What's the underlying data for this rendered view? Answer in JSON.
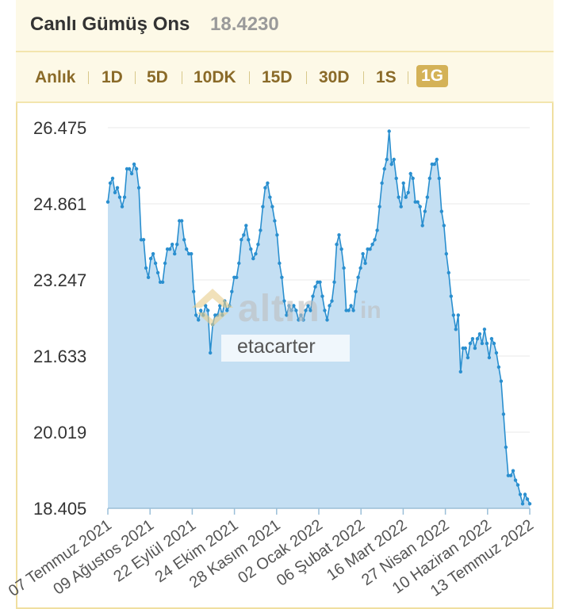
{
  "header": {
    "title": "Canlı Gümüş Ons",
    "price": "18.4230"
  },
  "tabs": [
    "Anlık",
    "1D",
    "5D",
    "10DK",
    "15D",
    "30D",
    "1S",
    "1G"
  ],
  "active_tab": "1G",
  "watermark": {
    "logo": "altın",
    "logo_suffix": "in",
    "text": "etacarter"
  },
  "colors": {
    "line": "#2a8fcf",
    "fill": "#c4dff3",
    "accent": "#d4b257",
    "grid": "#eeeeee"
  },
  "chart_data": {
    "type": "area",
    "ylim": [
      18.405,
      26.475
    ],
    "yticks": [
      "26.475",
      "24.861",
      "23.247",
      "21.633",
      "20.019",
      "18.405"
    ],
    "xticks": [
      "07 Temmuz 2021",
      "09 Ağustos 2021",
      "22 Eylül 2021",
      "24 Ekim 2021",
      "28 Kasım 2021",
      "02 Ocak 2022",
      "06 Şubat 2022",
      "16 Mart 2022",
      "27 Nisan 2022",
      "10 Haziran 2022",
      "13 Temmuz 2022"
    ],
    "grid": true,
    "series": [
      {
        "values": [
          24.9,
          25.3,
          25.4,
          25.1,
          25.2,
          25.0,
          24.8,
          25.0,
          25.6,
          25.6,
          25.5,
          25.7,
          25.6,
          25.2,
          24.1,
          24.1,
          23.5,
          23.3,
          23.7,
          23.8,
          23.6,
          23.4,
          23.2,
          23.2,
          23.6,
          23.9,
          23.9,
          24.0,
          23.8,
          24.0,
          24.5,
          24.5,
          24.1,
          23.9,
          23.8,
          23.8,
          23.0,
          22.5,
          22.4,
          22.6,
          22.5,
          22.7,
          22.6,
          21.7,
          22.3,
          22.5,
          22.5,
          22.7,
          22.5,
          22.8,
          22.6,
          22.7,
          23.0,
          23.3,
          23.3,
          23.6,
          24.1,
          24.2,
          24.4,
          24.1,
          23.9,
          23.7,
          23.8,
          24.0,
          24.3,
          24.8,
          25.2,
          25.3,
          25.0,
          24.8,
          24.5,
          24.2,
          23.6,
          23.3,
          22.8,
          22.5,
          22.7,
          22.6,
          22.7,
          22.6,
          22.4,
          22.5,
          22.4,
          22.6,
          22.7,
          22.6,
          22.9,
          23.1,
          23.2,
          23.2,
          22.9,
          22.6,
          22.4,
          22.7,
          22.8,
          23.2,
          24.0,
          24.2,
          23.9,
          23.5,
          22.6,
          22.6,
          22.7,
          22.6,
          23.0,
          23.3,
          23.5,
          23.8,
          23.6,
          23.9,
          23.9,
          24.0,
          24.1,
          24.3,
          24.8,
          25.3,
          25.6,
          25.8,
          26.4,
          25.7,
          25.8,
          25.4,
          25.0,
          24.8,
          25.3,
          25.0,
          25.1,
          25.5,
          25.4,
          24.9,
          24.9,
          24.8,
          24.4,
          24.7,
          25.0,
          25.4,
          25.7,
          25.7,
          25.8,
          25.4,
          24.7,
          24.4,
          23.8,
          23.4,
          22.9,
          22.5,
          22.2,
          22.5,
          21.3,
          21.8,
          21.8,
          21.6,
          21.9,
          22.0,
          21.8,
          22.0,
          22.1,
          21.9,
          22.2,
          21.9,
          21.6,
          22.0,
          21.9,
          21.7,
          21.4,
          21.1,
          20.4,
          19.7,
          19.1,
          19.1,
          19.2,
          19.0,
          18.9,
          18.7,
          18.5,
          18.7,
          18.6,
          18.5
        ]
      }
    ]
  }
}
